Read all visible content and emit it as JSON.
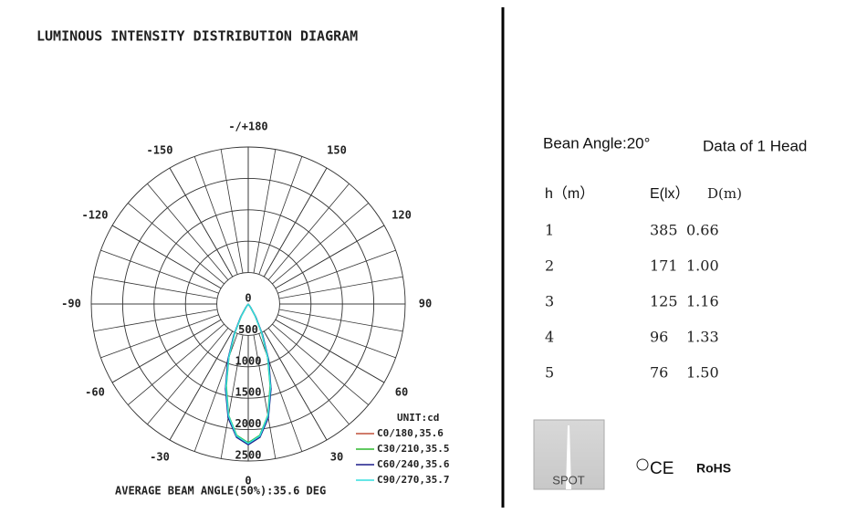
{
  "chart_data": {
    "type": "polar",
    "title": "LUMINOUS INTENSITY DISTRIBUTION DIAGRAM",
    "footnote": "AVERAGE BEAM ANGLE(50%):35.6 DEG",
    "unit_label": "UNIT:cd",
    "angle_ticks": [
      0,
      30,
      60,
      90,
      120,
      150,
      {
        "value": 180,
        "label": "-/+180"
      },
      -150,
      -120,
      -90,
      -60,
      -30
    ],
    "rlim": [
      0,
      2500
    ],
    "rticks": [
      0,
      500,
      1000,
      1500,
      2000,
      2500
    ],
    "angles": [
      -40,
      -35,
      -30,
      -25,
      -20,
      -15,
      -10,
      -5,
      0,
      5,
      10,
      15,
      20,
      25,
      30,
      35,
      40
    ],
    "series": [
      {
        "name": "C0/180,35.6",
        "color": "#c0503a",
        "values": [
          0,
          60,
          230,
          520,
          920,
          1380,
          1820,
          2120,
          2230,
          2120,
          1820,
          1380,
          920,
          520,
          230,
          60,
          0
        ]
      },
      {
        "name": "C30/210,35.5",
        "color": "#2db82d",
        "values": [
          0,
          55,
          220,
          500,
          900,
          1350,
          1800,
          2100,
          2210,
          2100,
          1800,
          1350,
          900,
          500,
          220,
          55,
          0
        ]
      },
      {
        "name": "C60/240,35.6",
        "color": "#1c1c8a",
        "values": [
          0,
          65,
          240,
          540,
          950,
          1400,
          1840,
          2130,
          2240,
          2130,
          1840,
          1400,
          950,
          540,
          240,
          65,
          0
        ]
      },
      {
        "name": "C90/270,35.7",
        "color": "#33dede",
        "values": [
          0,
          60,
          225,
          510,
          910,
          1370,
          1810,
          2110,
          2220,
          2110,
          1810,
          1370,
          910,
          510,
          225,
          60,
          0
        ]
      }
    ]
  },
  "spec": {
    "beam_angle": "Bean Angle:20°",
    "heads": "Data of 1 Head",
    "table": {
      "header": [
        "h（m）",
        "E(lx）",
        "D(m)"
      ],
      "rows": [
        [
          "1",
          "385",
          "0.66"
        ],
        [
          "2",
          "171",
          "1.00"
        ],
        [
          "3",
          "125",
          "1.16"
        ],
        [
          "4",
          "96",
          "1.33"
        ],
        [
          "5",
          "76",
          "1.50"
        ]
      ]
    },
    "badge": "SPOT",
    "certifications": [
      "CE",
      "RoHS"
    ]
  }
}
